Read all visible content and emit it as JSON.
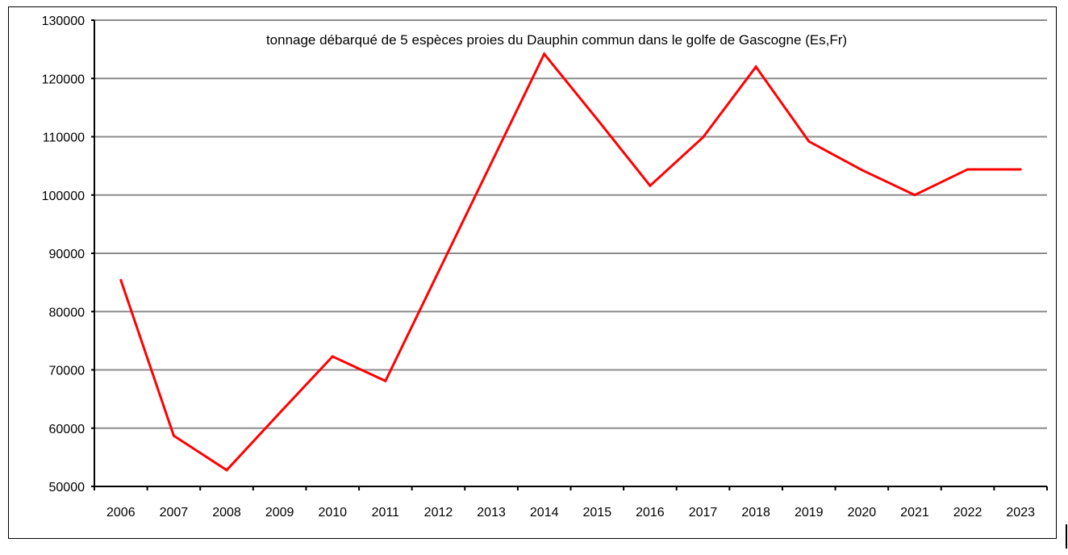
{
  "chart_data": {
    "type": "line",
    "title": "tonnage débarqué de 5 espèces proies du Dauphin commun dans le golfe de Gascogne (Es,Fr)",
    "xlabel": "",
    "ylabel": "",
    "categories": [
      "2006",
      "2007",
      "2008",
      "2009",
      "2010",
      "2011",
      "2012",
      "2013",
      "2014",
      "2015",
      "2016",
      "2017",
      "2018",
      "2019",
      "2020",
      "2021",
      "2022",
      "2023"
    ],
    "series": [
      {
        "name": "tonnage",
        "color": "#ff0000",
        "values": [
          85400,
          58700,
          52800,
          62600,
          72300,
          68100,
          86800,
          105500,
          124200,
          113000,
          101600,
          109900,
          122000,
          109200,
          104300,
          100000,
          104400,
          104400
        ]
      }
    ],
    "ylim": [
      50000,
      130000
    ],
    "yticks": [
      50000,
      60000,
      70000,
      80000,
      90000,
      100000,
      110000,
      120000,
      130000
    ],
    "ytick_labels": [
      "50000",
      "60000",
      "70000",
      "80000",
      "90000",
      "100000",
      "110000",
      "120000",
      "130000"
    ],
    "grid": true,
    "legend": "none"
  }
}
